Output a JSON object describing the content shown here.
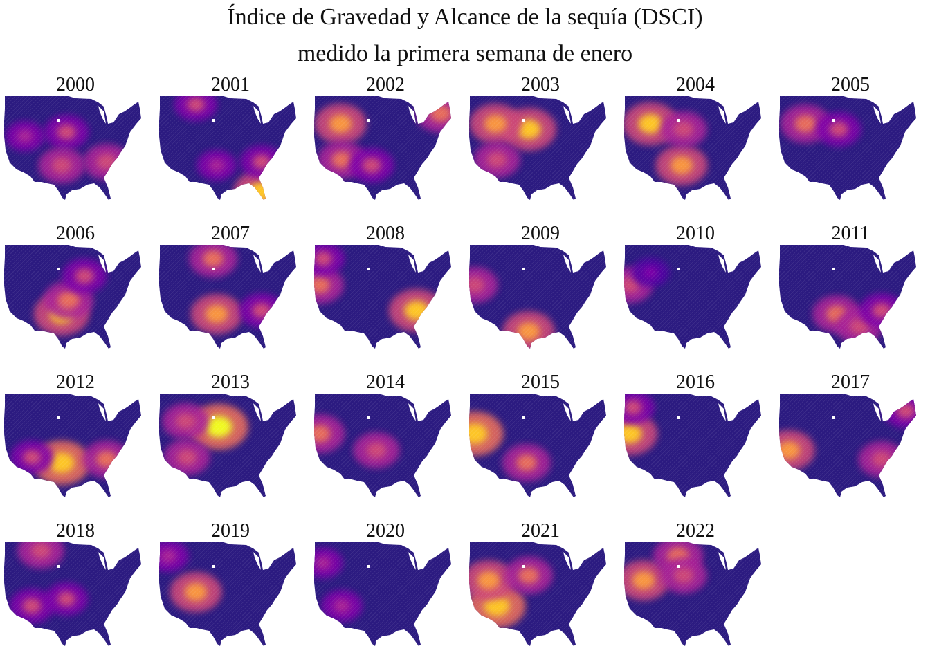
{
  "title": {
    "line1": "Índice de Gravedad y Alcance de la sequía (DSCI)",
    "line2": "medido la primera semana de enero"
  },
  "colors": {
    "background": "#ffffff",
    "scale": [
      "#0d0887",
      "#2b0597",
      "#5302a3",
      "#7e03a8",
      "#a82296",
      "#cc4778",
      "#e66c5c",
      "#f89540",
      "#fdc527",
      "#f0f921"
    ],
    "base_fill": "#2b1a80"
  },
  "map_data": {
    "type": "choropleth-small-multiples",
    "region": "contiguous-united-states",
    "unit": "county",
    "color_scale": "plasma (low DSCI = dark blue, high DSCI = yellow)",
    "panels": [
      {
        "year": "2000",
        "hotspots": [
          {
            "region": "central plains",
            "level": 0.55
          },
          {
            "region": "southeast",
            "level": 0.6
          },
          {
            "region": "texas",
            "level": 0.6
          },
          {
            "region": "nevada",
            "level": 0.4
          }
        ]
      },
      {
        "year": "2001",
        "hotspots": [
          {
            "region": "florida",
            "level": 0.85
          },
          {
            "region": "montana",
            "level": 0.5
          },
          {
            "region": "southeast",
            "level": 0.5
          },
          {
            "region": "texas",
            "level": 0.4
          }
        ]
      },
      {
        "year": "2002",
        "hotspots": [
          {
            "region": "mountain west",
            "level": 0.75
          },
          {
            "region": "southwest",
            "level": 0.65
          },
          {
            "region": "northeast",
            "level": 0.7
          },
          {
            "region": "texas",
            "level": 0.55
          }
        ]
      },
      {
        "year": "2003",
        "hotspots": [
          {
            "region": "great plains",
            "level": 0.85
          },
          {
            "region": "mountain west",
            "level": 0.75
          },
          {
            "region": "southwest",
            "level": 0.6
          }
        ]
      },
      {
        "year": "2004",
        "hotspots": [
          {
            "region": "mountain west",
            "level": 0.85
          },
          {
            "region": "texas",
            "level": 0.75
          },
          {
            "region": "great plains",
            "level": 0.6
          }
        ]
      },
      {
        "year": "2005",
        "hotspots": [
          {
            "region": "mountain west",
            "level": 0.7
          },
          {
            "region": "great plains",
            "level": 0.55
          }
        ]
      },
      {
        "year": "2006",
        "hotspots": [
          {
            "region": "texas",
            "level": 0.85
          },
          {
            "region": "oklahoma",
            "level": 0.7
          },
          {
            "region": "upper midwest",
            "level": 0.55
          }
        ]
      },
      {
        "year": "2007",
        "hotspots": [
          {
            "region": "northern plains",
            "level": 0.65
          },
          {
            "region": "texas",
            "level": 0.75
          },
          {
            "region": "southeast",
            "level": 0.55
          }
        ]
      },
      {
        "year": "2008",
        "hotspots": [
          {
            "region": "california",
            "level": 0.65
          },
          {
            "region": "southeast",
            "level": 0.85
          },
          {
            "region": "pacific northwest",
            "level": 0.5
          }
        ]
      },
      {
        "year": "2009",
        "hotspots": [
          {
            "region": "california",
            "level": 0.6
          },
          {
            "region": "south texas",
            "level": 0.75
          }
        ]
      },
      {
        "year": "2010",
        "hotspots": [
          {
            "region": "california",
            "level": 0.6
          },
          {
            "region": "mountain west",
            "level": 0.35
          }
        ]
      },
      {
        "year": "2011",
        "hotspots": [
          {
            "region": "texas",
            "level": 0.65
          },
          {
            "region": "gulf coast",
            "level": 0.6
          },
          {
            "region": "southeast",
            "level": 0.55
          }
        ]
      },
      {
        "year": "2012",
        "hotspots": [
          {
            "region": "texas",
            "level": 0.9
          },
          {
            "region": "southeast",
            "level": 0.65
          },
          {
            "region": "southwest",
            "level": 0.5
          }
        ]
      },
      {
        "year": "2013",
        "hotspots": [
          {
            "region": "great plains",
            "level": 0.95
          },
          {
            "region": "mountain west",
            "level": 0.6
          },
          {
            "region": "southwest",
            "level": 0.6
          }
        ]
      },
      {
        "year": "2014",
        "hotspots": [
          {
            "region": "california",
            "level": 0.7
          },
          {
            "region": "southern plains",
            "level": 0.6
          }
        ]
      },
      {
        "year": "2015",
        "hotspots": [
          {
            "region": "california",
            "level": 0.9
          },
          {
            "region": "texas",
            "level": 0.65
          }
        ]
      },
      {
        "year": "2016",
        "hotspots": [
          {
            "region": "california",
            "level": 0.85
          },
          {
            "region": "pacific northwest",
            "level": 0.5
          }
        ]
      },
      {
        "year": "2017",
        "hotspots": [
          {
            "region": "southern california",
            "level": 0.75
          },
          {
            "region": "southeast",
            "level": 0.6
          },
          {
            "region": "northeast",
            "level": 0.55
          }
        ]
      },
      {
        "year": "2018",
        "hotspots": [
          {
            "region": "montana",
            "level": 0.6
          },
          {
            "region": "southwest",
            "level": 0.55
          },
          {
            "region": "southern plains",
            "level": 0.5
          }
        ]
      },
      {
        "year": "2019",
        "hotspots": [
          {
            "region": "four corners",
            "level": 0.75
          },
          {
            "region": "pacific northwest",
            "level": 0.45
          }
        ]
      },
      {
        "year": "2020",
        "hotspots": [
          {
            "region": "southwest",
            "level": 0.45
          },
          {
            "region": "oregon",
            "level": 0.4
          }
        ]
      },
      {
        "year": "2021",
        "hotspots": [
          {
            "region": "southwest",
            "level": 0.9
          },
          {
            "region": "west",
            "level": 0.75
          },
          {
            "region": "great plains",
            "level": 0.65
          }
        ]
      },
      {
        "year": "2022",
        "hotspots": [
          {
            "region": "west",
            "level": 0.75
          },
          {
            "region": "northern plains",
            "level": 0.7
          },
          {
            "region": "great plains",
            "level": 0.6
          }
        ]
      }
    ]
  }
}
